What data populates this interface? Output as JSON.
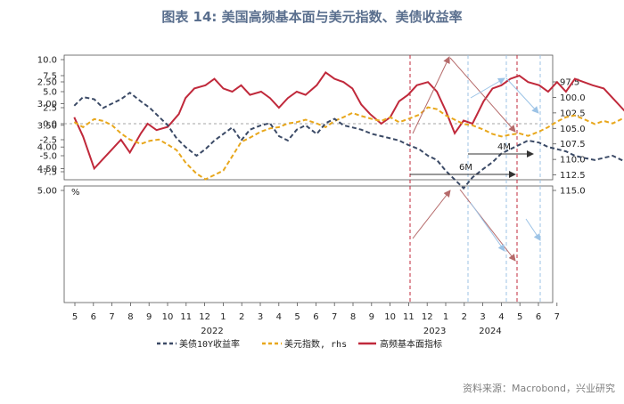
{
  "title": "图表 14: 美国高频基本面与美元指数、美债收益率",
  "source": "资料来源：Macrobond，兴业研究",
  "colors": {
    "fundamental": "#c0293b",
    "treasury": "#3b4a66",
    "dxy": "#e8a71c",
    "arrow": "#b56a6a",
    "arrow_light": "#9cc3e6",
    "vline": "#c0293b",
    "vline_light": "#9cc3e6"
  },
  "chart_data": [
    {
      "type": "line",
      "panel": "top",
      "y_ticks": [
        "10.0",
        "7.5",
        "5.0",
        "2.5",
        "0.0",
        "-2.5",
        "-5.0",
        "-7.5"
      ],
      "ylim": [
        -10,
        10
      ],
      "zero_line": "dashed",
      "series": [
        {
          "name": "高频基本面指标",
          "color": "#c0293b",
          "x": [
            2021.33,
            2021.37,
            2021.4,
            2021.42,
            2021.46,
            2021.5,
            2021.54,
            2021.58,
            2021.63,
            2021.66,
            2021.7,
            2021.75,
            2021.8,
            2021.83,
            2021.87,
            2021.92,
            2021.96,
            2022.0,
            2022.04,
            2022.08,
            2022.12,
            2022.17,
            2022.21,
            2022.25,
            2022.29,
            2022.33,
            2022.37,
            2022.42,
            2022.46,
            2022.5,
            2022.54,
            2022.58,
            2022.62,
            2022.66,
            2022.71,
            2022.75,
            2022.79,
            2022.83,
            2022.87,
            2022.92,
            2022.96,
            2023.0,
            2023.04,
            2023.08,
            2023.12,
            2023.17,
            2023.21,
            2023.25,
            2023.29,
            2023.33,
            2023.37,
            2023.42,
            2023.46,
            2023.5,
            2023.54,
            2023.58,
            2023.62,
            2023.66,
            2023.71,
            2023.75,
            2023.79,
            2023.83,
            2023.87,
            2023.9,
            2023.94,
            2023.98,
            2024.02,
            2024.06,
            2024.1,
            2024.13,
            2024.17,
            2024.21,
            2024.25,
            2024.29,
            2024.33,
            2024.37,
            2024.4
          ],
          "y": [
            1,
            -2,
            -5,
            -7,
            -5.5,
            -4,
            -2.5,
            -4.5,
            -1.5,
            0,
            -1,
            -0.5,
            1.5,
            4,
            5.5,
            6,
            7,
            5.5,
            5,
            6,
            4.5,
            5,
            4,
            2.5,
            4,
            5,
            4.5,
            6,
            8,
            7,
            6.5,
            5.5,
            3,
            1.5,
            0,
            1,
            3.5,
            4.5,
            6,
            6.5,
            5,
            2,
            -1.5,
            0.5,
            0,
            3.5,
            5.5,
            6,
            7,
            7.5,
            6.5,
            6,
            5,
            6.5,
            5,
            7,
            6.5,
            6,
            5.5,
            4,
            2.5,
            1,
            -1.5,
            -2.5,
            -1.5,
            0.5,
            1.5,
            1,
            2.5,
            5,
            8,
            6.5,
            3,
            1.5,
            2.5,
            4,
            0.5
          ]
        }
      ]
    },
    {
      "type": "line",
      "panel": "bottom",
      "y_unit": "%",
      "y_ticks": [
        "5.00",
        "4.50",
        "4.00",
        "3.50",
        "3.00",
        "2.50"
      ],
      "ylim": [
        2.5,
        5.0
      ],
      "y2_ticks": [
        "115.0",
        "112.5",
        "110.0",
        "107.5",
        "105.0",
        "102.5",
        "100.0",
        "97.5"
      ],
      "y2lim": [
        97.5,
        115.0
      ],
      "x_tick_labels": [
        "5",
        "6",
        "7",
        "8",
        "9",
        "10",
        "11",
        "12",
        "1",
        "2",
        "3",
        "4",
        "5",
        "6",
        "7",
        "8",
        "9",
        "10",
        "11",
        "12",
        "1",
        "2",
        "3",
        "4",
        "5",
        "6",
        "7"
      ],
      "year_labels": [
        "2022",
        "2023",
        "2024"
      ],
      "series": [
        {
          "name": "美债10Y收益率",
          "color": "#3b4a66",
          "style": "dashed",
          "x": [
            2021.33,
            2021.37,
            2021.42,
            2021.46,
            2021.5,
            2021.54,
            2021.58,
            2021.63,
            2021.67,
            2021.71,
            2021.75,
            2021.79,
            2021.83,
            2021.88,
            2021.92,
            2021.96,
            2022.0,
            2022.04,
            2022.08,
            2022.12,
            2022.17,
            2022.21,
            2022.25,
            2022.29,
            2022.33,
            2022.37,
            2022.42,
            2022.46,
            2022.5,
            2022.54,
            2022.58,
            2022.62,
            2022.67,
            2022.71,
            2022.75,
            2022.79,
            2022.83,
            2022.88,
            2022.92,
            2022.96,
            2023.0,
            2023.04,
            2023.08,
            2023.12,
            2023.17,
            2023.21,
            2023.25,
            2023.29,
            2023.33,
            2023.37,
            2023.42,
            2023.46,
            2023.5,
            2023.54,
            2023.58,
            2023.62,
            2023.67,
            2023.71,
            2023.75,
            2023.79,
            2023.83,
            2023.88,
            2023.92,
            2023.96,
            2024.0,
            2024.04,
            2024.08,
            2024.12,
            2024.17,
            2024.21,
            2024.25,
            2024.29,
            2024.33,
            2024.37,
            2024.4
          ],
          "y": [
            3.05,
            2.85,
            2.9,
            3.1,
            3.0,
            2.9,
            2.75,
            2.95,
            3.1,
            3.3,
            3.5,
            3.8,
            4.0,
            4.2,
            4.05,
            3.85,
            3.7,
            3.55,
            3.85,
            3.6,
            3.5,
            3.45,
            3.75,
            3.85,
            3.6,
            3.5,
            3.7,
            3.45,
            3.35,
            3.5,
            3.55,
            3.6,
            3.7,
            3.75,
            3.8,
            3.85,
            3.95,
            4.05,
            4.2,
            4.3,
            4.55,
            4.75,
            4.95,
            4.7,
            4.5,
            4.35,
            4.15,
            4.05,
            3.95,
            3.85,
            3.9,
            4.0,
            4.05,
            4.1,
            4.2,
            4.25,
            4.3,
            4.25,
            4.2,
            4.3,
            4.4,
            4.55,
            4.7,
            4.6,
            4.5,
            4.4,
            4.3,
            4.35,
            4.4,
            4.5,
            4.6,
            4.65,
            4.6,
            4.45,
            4.3
          ]
        },
        {
          "name": "美元指数, rhs",
          "color": "#e8a71c",
          "style": "dashed",
          "x": [
            2021.33,
            2021.37,
            2021.42,
            2021.46,
            2021.5,
            2021.54,
            2021.58,
            2021.63,
            2021.67,
            2021.71,
            2021.75,
            2021.79,
            2021.83,
            2021.88,
            2021.92,
            2021.96,
            2022.0,
            2022.04,
            2022.08,
            2022.12,
            2022.17,
            2022.21,
            2022.25,
            2022.29,
            2022.33,
            2022.37,
            2022.42,
            2022.46,
            2022.5,
            2022.54,
            2022.58,
            2022.62,
            2022.67,
            2022.71,
            2022.75,
            2022.79,
            2022.83,
            2022.88,
            2022.92,
            2022.96,
            2023.0,
            2023.04,
            2023.08,
            2023.12,
            2023.17,
            2023.21,
            2023.25,
            2023.29,
            2023.33,
            2023.37,
            2023.42,
            2023.46,
            2023.5,
            2023.54,
            2023.58,
            2023.62,
            2023.67,
            2023.71,
            2023.75,
            2023.79,
            2023.83,
            2023.88,
            2023.92,
            2023.96,
            2024.0,
            2024.04,
            2024.08,
            2024.12,
            2024.17,
            2024.21,
            2024.25,
            2024.29,
            2024.33,
            2024.37,
            2024.4
          ],
          "y": [
            104,
            104.8,
            103.5,
            103.8,
            104.5,
            105.8,
            106.8,
            107.5,
            107,
            106.8,
            107.6,
            108.5,
            110.5,
            112.3,
            113.2,
            112.5,
            111.8,
            109.5,
            107.2,
            106.5,
            105.5,
            105.0,
            104.8,
            104.2,
            104.0,
            103.6,
            104.2,
            104.8,
            103.8,
            103.2,
            102.5,
            103.0,
            103.5,
            103.8,
            103.2,
            104.0,
            103.5,
            102.8,
            101.6,
            101.9,
            102.9,
            103.6,
            104.3,
            104.5,
            105.2,
            105.9,
            106.3,
            106.0,
            105.8,
            106.2,
            105.5,
            104.8,
            103.9,
            103.2,
            102.9,
            103.5,
            104.3,
            103.8,
            104.2,
            103.5,
            103.2,
            103.8,
            104.5,
            104.2,
            103.9,
            104.5,
            105.6,
            106.2,
            105.8,
            106.0,
            105.2,
            104.8,
            105.4,
            105.1,
            104.8
          ]
        }
      ]
    }
  ],
  "annotations": {
    "label_4m": "4M",
    "label_6m": "6M"
  }
}
